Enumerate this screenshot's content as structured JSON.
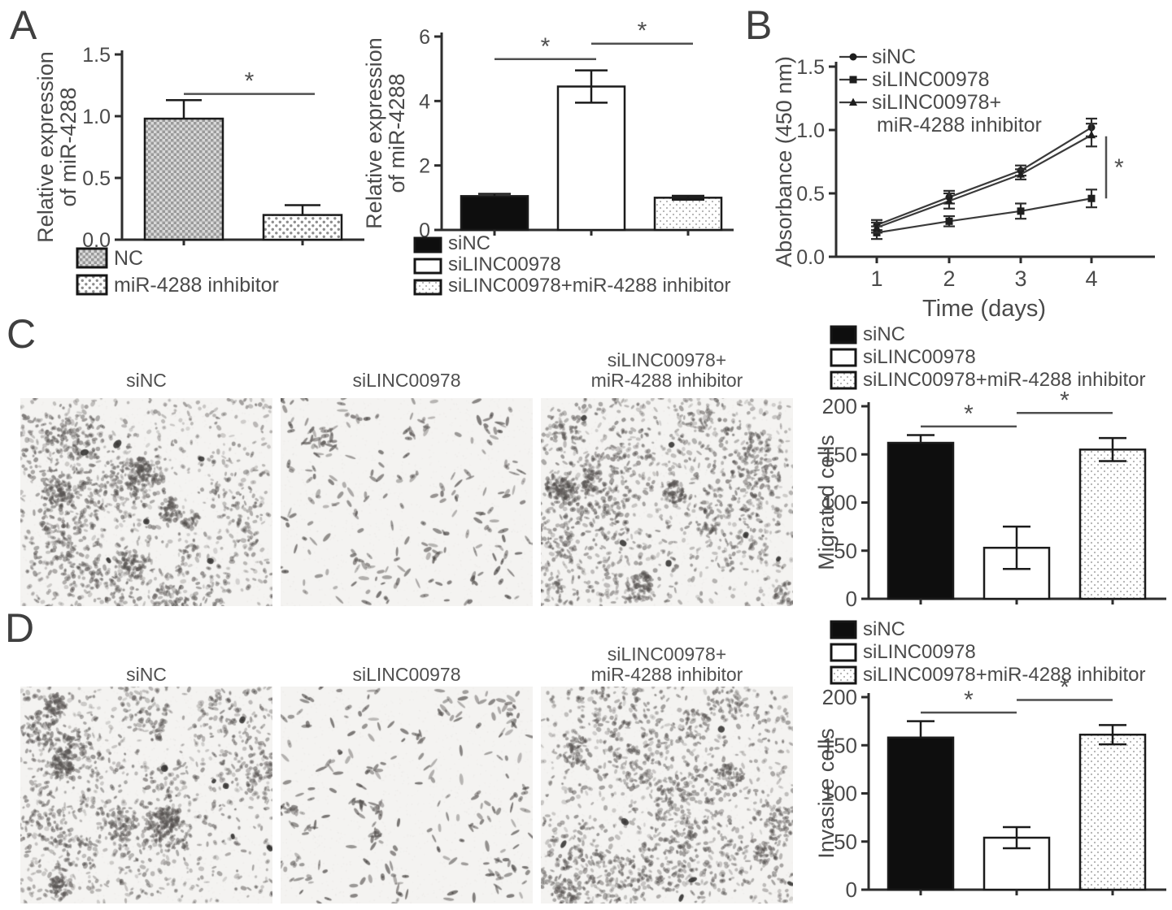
{
  "panel_labels": {
    "a": "A",
    "b": "B",
    "c": "C",
    "d": "D"
  },
  "colors": {
    "background": "#ffffff",
    "text": "#4a4a4a",
    "axis": "#2d2d2d",
    "bar_black": "#0e0e0e",
    "bar_white": "#ffffff",
    "bar_outline": "#1b1b1b",
    "pattern_gray": "#9a9a9a",
    "sig": "#4f4f4f",
    "series_line": "#3a3a3a",
    "marker": "#1e1e1e"
  },
  "micrographs": {
    "c": [
      {
        "label": "siNC",
        "density": "dense",
        "seed": 101
      },
      {
        "label": "siLINC00978",
        "density": "sparse",
        "seed": 202
      },
      {
        "label": "siLINC00978+\nmiR-4288 inhibitor",
        "density": "dense",
        "seed": 303
      }
    ],
    "d": [
      {
        "label": "siNC",
        "density": "dense",
        "seed": 404
      },
      {
        "label": "siLINC00978",
        "density": "sparse",
        "seed": 505
      },
      {
        "label": "siLINC00978+\nmiR-4288 inhibitor",
        "density": "dense",
        "seed": 606
      }
    ]
  },
  "chart_data": [
    {
      "id": "a1",
      "type": "bar",
      "ylabel": "Relative expression\nof miR-4288",
      "ylim": [
        0,
        1.5
      ],
      "yticks": [
        0,
        0.5,
        1,
        1.5
      ],
      "ytick_labels": [
        "0.0",
        "0.5",
        "1.0",
        "1.5"
      ],
      "categories": [
        "NC",
        "miR-4288 inhibitor"
      ],
      "values": [
        0.98,
        0.2
      ],
      "errors": [
        0.15,
        0.08
      ],
      "styles": [
        "crosshatch",
        "checkdot"
      ],
      "legend": [
        {
          "label": "NC",
          "style": "crosshatch"
        },
        {
          "label": "miR-4288 inhibitor",
          "style": "checkdot"
        }
      ],
      "legend_position": "below",
      "grid": false,
      "significance": [
        {
          "from": 0,
          "to": 1,
          "y": 1.18,
          "label": "*"
        }
      ]
    },
    {
      "id": "a2",
      "type": "bar",
      "ylabel": "Relative expression\nof miR-4288",
      "ylim": [
        0,
        6
      ],
      "yticks": [
        0,
        2,
        4,
        6
      ],
      "ytick_labels": [
        "0",
        "2",
        "4",
        "6"
      ],
      "categories": [
        "siNC",
        "siLINC00978",
        "siLINC00978+miR-4288 inhibitor"
      ],
      "values": [
        1.05,
        4.45,
        1.0
      ],
      "errors": [
        0.07,
        0.5,
        0.06
      ],
      "styles": [
        "black",
        "white",
        "dots"
      ],
      "legend": [
        {
          "label": "siNC",
          "style": "black"
        },
        {
          "label": "siLINC00978",
          "style": "white"
        },
        {
          "label": "siLINC00978+miR-4288 inhibitor",
          "style": "dots"
        }
      ],
      "legend_position": "below",
      "grid": false,
      "significance": [
        {
          "from": 0,
          "to": 1,
          "y": 5.3,
          "label": "*"
        },
        {
          "from": 1,
          "to": 2,
          "y": 5.78,
          "label": "*"
        }
      ]
    },
    {
      "id": "b",
      "type": "line",
      "xlabel": "Time (days)",
      "ylabel": "Absorbance (450 nm)",
      "x": [
        1,
        2,
        3,
        4
      ],
      "xtick_labels": [
        "1",
        "2",
        "3",
        "4"
      ],
      "ylim": [
        0,
        1.5
      ],
      "yticks": [
        0,
        0.5,
        1,
        1.5
      ],
      "ytick_labels": [
        "0.0",
        "0.5",
        "1.0",
        "1.5"
      ],
      "series": [
        {
          "name": "siNC",
          "marker": "circle",
          "values": [
            0.25,
            0.47,
            0.68,
            1.02
          ],
          "errors": [
            0.04,
            0.05,
            0.04,
            0.07
          ]
        },
        {
          "name": "siLINC00978",
          "marker": "square",
          "values": [
            0.19,
            0.28,
            0.36,
            0.46
          ],
          "errors": [
            0.05,
            0.04,
            0.06,
            0.07
          ]
        },
        {
          "name": "siLINC00978+\nmiR-4288 inhibitor",
          "marker": "triangle",
          "values": [
            0.23,
            0.44,
            0.65,
            0.96
          ],
          "errors": [
            0.04,
            0.06,
            0.04,
            0.09
          ]
        }
      ],
      "legend_position": "top-left",
      "grid": false,
      "significance": [
        {
          "type": "bracket",
          "x_index": 3,
          "y_from": 0.95,
          "y_to": 0.46,
          "label": "*"
        }
      ]
    },
    {
      "id": "c",
      "type": "bar",
      "ylabel": "Migrated cells",
      "ylim": [
        0,
        200
      ],
      "yticks": [
        0,
        50,
        100,
        150,
        200
      ],
      "ytick_labels": [
        "0",
        "50",
        "100",
        "150",
        "200"
      ],
      "categories": [
        "siNC",
        "siLINC00978",
        "siLINC00978+miR-4288 inhibitor"
      ],
      "values": [
        162,
        53,
        155
      ],
      "errors": [
        8,
        22,
        12
      ],
      "styles": [
        "black",
        "white",
        "dots"
      ],
      "legend": [
        {
          "label": "siNC",
          "style": "black"
        },
        {
          "label": "siLINC00978",
          "style": "white"
        },
        {
          "label": "siLINC00978+miR-4288 inhibitor",
          "style": "dots"
        }
      ],
      "legend_position": "above",
      "grid": false,
      "significance": [
        {
          "from": 0,
          "to": 1,
          "y": 179,
          "label": "*"
        },
        {
          "from": 1,
          "to": 2,
          "y": 193,
          "label": "*"
        }
      ]
    },
    {
      "id": "d",
      "type": "bar",
      "ylabel": "Invasive cells",
      "ylim": [
        0,
        200
      ],
      "yticks": [
        0,
        50,
        100,
        150,
        200
      ],
      "ytick_labels": [
        "0",
        "50",
        "100",
        "150",
        "200"
      ],
      "categories": [
        "siNC",
        "siLINC00978",
        "siLINC00978+miR-4288 inhibitor"
      ],
      "values": [
        158,
        54,
        161
      ],
      "errors": [
        17,
        11,
        10
      ],
      "styles": [
        "black",
        "white",
        "dots"
      ],
      "legend": [
        {
          "label": "siNC",
          "style": "black"
        },
        {
          "label": "siLINC00978",
          "style": "white"
        },
        {
          "label": "siLINC00978+miR-4288 inhibitor",
          "style": "dots"
        }
      ],
      "legend_position": "above",
      "grid": false,
      "significance": [
        {
          "from": 0,
          "to": 1,
          "y": 184,
          "label": "*"
        },
        {
          "from": 1,
          "to": 2,
          "y": 197,
          "label": "*"
        }
      ]
    }
  ]
}
